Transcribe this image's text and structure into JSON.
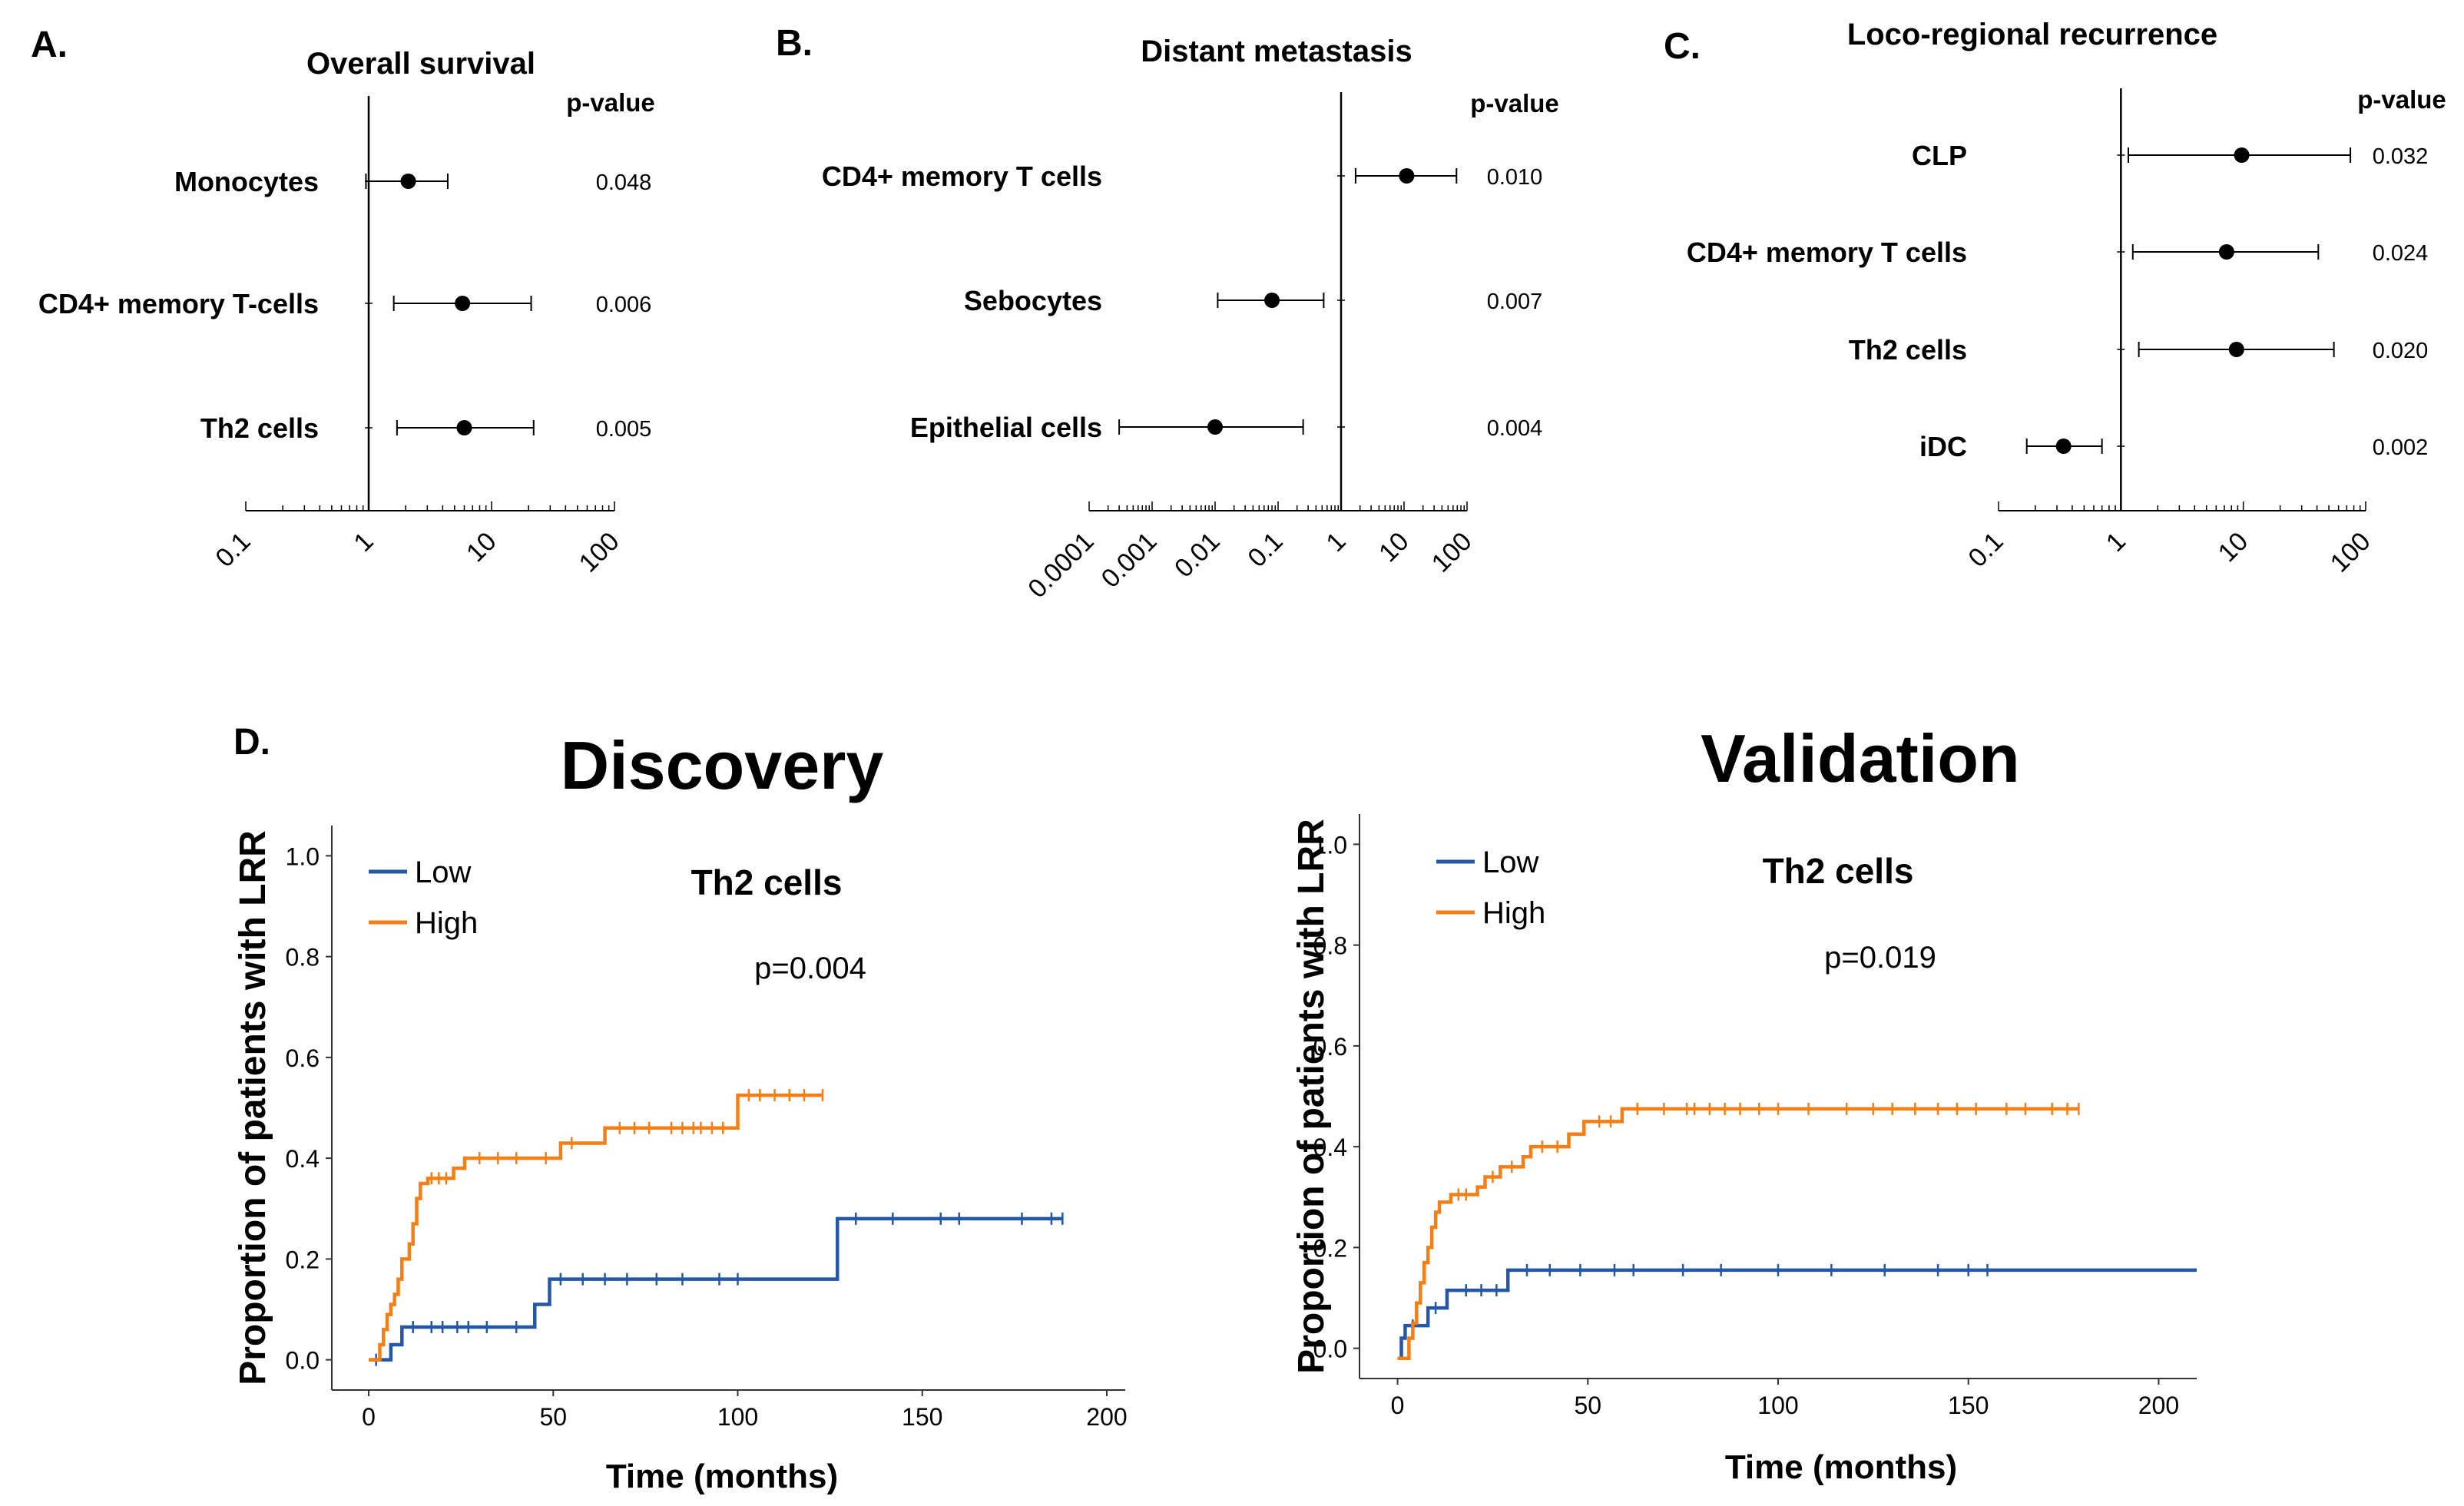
{
  "panels": {
    "A": {
      "letter": "A."
    },
    "B": {
      "letter": "B."
    },
    "C": {
      "letter": "C."
    },
    "D": {
      "letter": "D."
    }
  },
  "chart_data": [
    {
      "type": "forest",
      "id": "A",
      "title": "Overall survival",
      "pvalue_header": "p-value",
      "axis_scale": "log",
      "xlim": [
        0.1,
        100
      ],
      "xticks": [
        "0.1",
        "1",
        "10",
        "100"
      ],
      "rows": [
        {
          "label": "Monocytes",
          "estimate": 2.1,
          "ci_low": 0.95,
          "ci_high": 4.4,
          "p": "0.048"
        },
        {
          "label": "CD4+ memory T-cells",
          "estimate": 5.8,
          "ci_low": 1.6,
          "ci_high": 21,
          "p": "0.006"
        },
        {
          "label": "Th2 cells",
          "estimate": 6.0,
          "ci_low": 1.7,
          "ci_high": 22,
          "p": "0.005"
        }
      ]
    },
    {
      "type": "forest",
      "id": "B",
      "title": "Distant metastasis",
      "pvalue_header": "p-value",
      "axis_scale": "log",
      "xlim": [
        0.0001,
        100
      ],
      "xticks": [
        "0.0001",
        "0.001",
        "0.01",
        "0.1",
        "1",
        "10",
        "100"
      ],
      "rows": [
        {
          "label": "CD4+ memory T cells",
          "estimate": 11,
          "ci_low": 1.7,
          "ci_high": 68,
          "p": "0.010"
        },
        {
          "label": "Sebocytes",
          "estimate": 0.08,
          "ci_low": 0.011,
          "ci_high": 0.53,
          "p": "0.007"
        },
        {
          "label": "Epithelial cells",
          "estimate": 0.01,
          "ci_low": 0.0003,
          "ci_high": 0.25,
          "p": "0.004"
        }
      ]
    },
    {
      "type": "forest",
      "id": "C",
      "title": "Loco-regional recurrence",
      "pvalue_header": "p-value",
      "axis_scale": "log",
      "xlim": [
        0.1,
        100
      ],
      "xticks": [
        "0.1",
        "1",
        "10",
        "100"
      ],
      "rows": [
        {
          "label": "CLP",
          "estimate": 9.7,
          "ci_low": 1.15,
          "ci_high": 75,
          "p": "0.032"
        },
        {
          "label": "CD4+ memory T cells",
          "estimate": 7.3,
          "ci_low": 1.25,
          "ci_high": 41,
          "p": "0.024"
        },
        {
          "label": "Th2 cells",
          "estimate": 8.8,
          "ci_low": 1.4,
          "ci_high": 55,
          "p": "0.020"
        },
        {
          "label": "iDC",
          "estimate": 0.34,
          "ci_low": 0.17,
          "ci_high": 0.7,
          "p": "0.002"
        }
      ]
    },
    {
      "type": "line",
      "subtype": "step",
      "id": "D-discovery",
      "title": "Discovery",
      "subtitle": "Th2 cells",
      "annotation": "p=0.004",
      "xlabel": "Time (months)",
      "ylabel": "Proportion of patients with LRR",
      "xlim": [
        -10,
        205
      ],
      "ylim": [
        -0.06,
        1.06
      ],
      "xticks": [
        0,
        50,
        100,
        150,
        200
      ],
      "xticklabels": [
        "0",
        "50",
        "100",
        "150",
        "200"
      ],
      "yticks": [
        0.0,
        0.2,
        0.4,
        0.6,
        0.8,
        1.0
      ],
      "yticklabels": [
        "0.0",
        "0.2",
        "0.4",
        "0.6",
        "0.8",
        "1.0"
      ],
      "legend": {
        "position": "top-left",
        "entries": [
          "Low",
          "High"
        ]
      },
      "series": [
        {
          "name": "Low",
          "color": "#2557a7",
          "steps": [
            [
              0,
              0.0
            ],
            [
              6,
              0.03
            ],
            [
              9,
              0.065
            ],
            [
              45,
              0.11
            ],
            [
              49,
              0.16
            ],
            [
              127,
              0.28
            ],
            [
              188,
              0.28
            ]
          ],
          "censor": [
            2,
            12,
            17,
            20,
            24,
            27,
            32,
            40,
            52,
            58,
            64,
            70,
            78,
            85,
            95,
            100,
            132,
            142,
            155,
            160,
            177,
            185,
            188
          ]
        },
        {
          "name": "High",
          "color": "#f57f17",
          "steps": [
            [
              0,
              0.0
            ],
            [
              3,
              0.03
            ],
            [
              4,
              0.06
            ],
            [
              5,
              0.09
            ],
            [
              6,
              0.11
            ],
            [
              7,
              0.13
            ],
            [
              8,
              0.16
            ],
            [
              9,
              0.2
            ],
            [
              11,
              0.23
            ],
            [
              12,
              0.27
            ],
            [
              13,
              0.32
            ],
            [
              14,
              0.35
            ],
            [
              16,
              0.36
            ],
            [
              23,
              0.38
            ],
            [
              26,
              0.4
            ],
            [
              52,
              0.43
            ],
            [
              64,
              0.46
            ],
            [
              100,
              0.525
            ],
            [
              123,
              0.525
            ]
          ],
          "censor": [
            17,
            19,
            21,
            30,
            35,
            40,
            48,
            55,
            68,
            72,
            76,
            82,
            85,
            88,
            90,
            93,
            96,
            103,
            106,
            110,
            114,
            118,
            123
          ]
        }
      ]
    },
    {
      "type": "line",
      "subtype": "step",
      "id": "D-validation",
      "title": "Validation",
      "subtitle": "Th2 cells",
      "annotation": "p=0.019",
      "xlabel": "Time (months)",
      "ylabel": "Proportion of patients with LRR",
      "xlim": [
        -10,
        210
      ],
      "ylim": [
        -0.06,
        1.06
      ],
      "xticks": [
        0,
        50,
        100,
        150,
        200
      ],
      "xticklabels": [
        "0",
        "50",
        "100",
        "150",
        "200"
      ],
      "yticks": [
        0.0,
        0.2,
        0.4,
        0.6,
        0.8,
        1.0
      ],
      "yticklabels": [
        "0.0",
        "0.2",
        "0.4",
        "0.6",
        "0.8",
        "1.0"
      ],
      "legend": {
        "position": "top-left",
        "entries": [
          "Low",
          "High"
        ]
      },
      "series": [
        {
          "name": "Low",
          "color": "#2557a7",
          "steps": [
            [
              0,
              -0.02
            ],
            [
              1,
              0.02
            ],
            [
              2,
              0.045
            ],
            [
              8,
              0.08
            ],
            [
              13,
              0.115
            ],
            [
              29,
              0.155
            ],
            [
              210,
              0.155
            ]
          ],
          "censor": [
            4,
            10,
            18,
            22,
            26,
            34,
            40,
            48,
            57,
            62,
            75,
            85,
            100,
            114,
            128,
            142,
            150,
            155
          ]
        },
        {
          "name": "High",
          "color": "#f57f17",
          "steps": [
            [
              0,
              -0.02
            ],
            [
              3,
              0.02
            ],
            [
              4,
              0.05
            ],
            [
              5,
              0.09
            ],
            [
              6,
              0.13
            ],
            [
              7,
              0.17
            ],
            [
              8,
              0.2
            ],
            [
              9,
              0.24
            ],
            [
              10,
              0.27
            ],
            [
              11,
              0.29
            ],
            [
              14,
              0.305
            ],
            [
              21,
              0.32
            ],
            [
              23,
              0.34
            ],
            [
              27,
              0.36
            ],
            [
              33,
              0.38
            ],
            [
              35,
              0.4
            ],
            [
              45,
              0.425
            ],
            [
              49,
              0.45
            ],
            [
              59,
              0.475
            ],
            [
              179,
              0.475
            ]
          ],
          "censor": [
            16,
            18,
            25,
            30,
            38,
            42,
            53,
            56,
            63,
            70,
            76,
            78,
            82,
            86,
            90,
            95,
            100,
            108,
            118,
            125,
            130,
            136,
            142,
            147,
            152,
            160,
            165,
            172,
            176,
            179
          ]
        }
      ]
    }
  ]
}
